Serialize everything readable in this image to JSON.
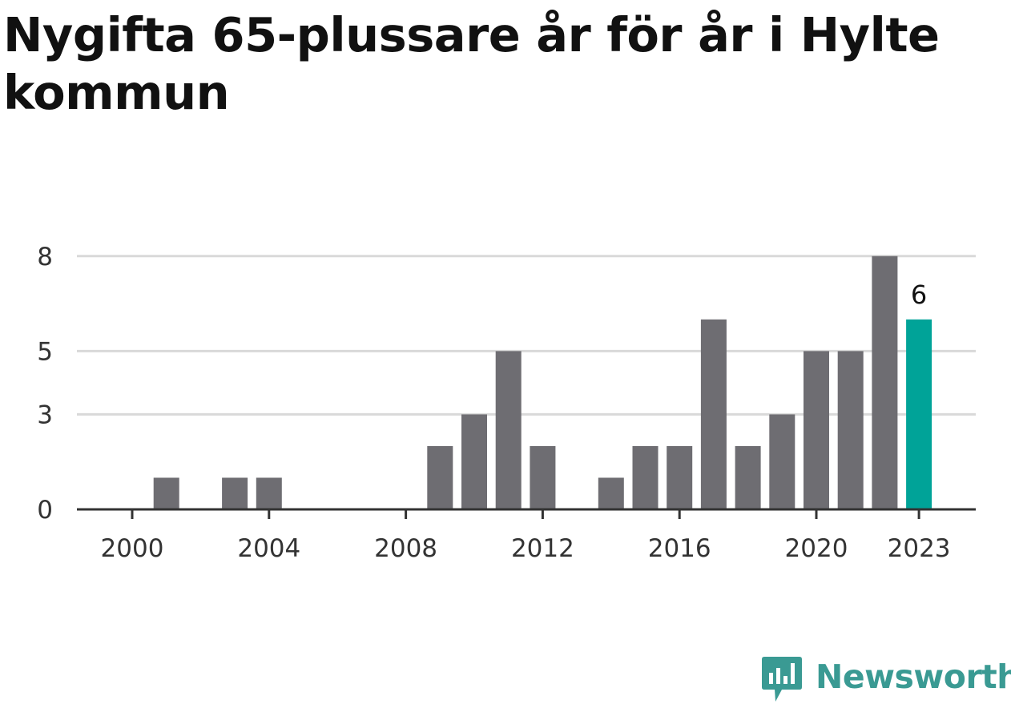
{
  "title": "Nygifta 65-plussare år för år i Hylte kommun",
  "logo": {
    "text": "Newsworthy",
    "color": "#3a9a93"
  },
  "chart_data": {
    "type": "bar",
    "title": "Nygifta 65-plussare år för år i Hylte kommun",
    "xlabel": "",
    "ylabel": "",
    "categories": [
      2000,
      2001,
      2002,
      2003,
      2004,
      2005,
      2006,
      2007,
      2008,
      2009,
      2010,
      2011,
      2012,
      2013,
      2014,
      2015,
      2016,
      2017,
      2018,
      2019,
      2020,
      2021,
      2022,
      2023
    ],
    "values": [
      0,
      1,
      0,
      1,
      1,
      0,
      0,
      0,
      0,
      2,
      3,
      5,
      2,
      0,
      1,
      2,
      2,
      6,
      2,
      3,
      5,
      5,
      8,
      6
    ],
    "x_ticks": [
      "2000",
      "2004",
      "2008",
      "2012",
      "2016",
      "2020",
      "2023"
    ],
    "y_ticks": [
      0,
      3,
      5,
      8
    ],
    "ylim": [
      0,
      8.5
    ],
    "grid": true,
    "highlight": {
      "category": 2023,
      "label": "6"
    },
    "colors": {
      "bar": "#6e6d72",
      "highlight": "#00a398",
      "grid": "#d9d9d9",
      "axis": "#333333"
    }
  }
}
